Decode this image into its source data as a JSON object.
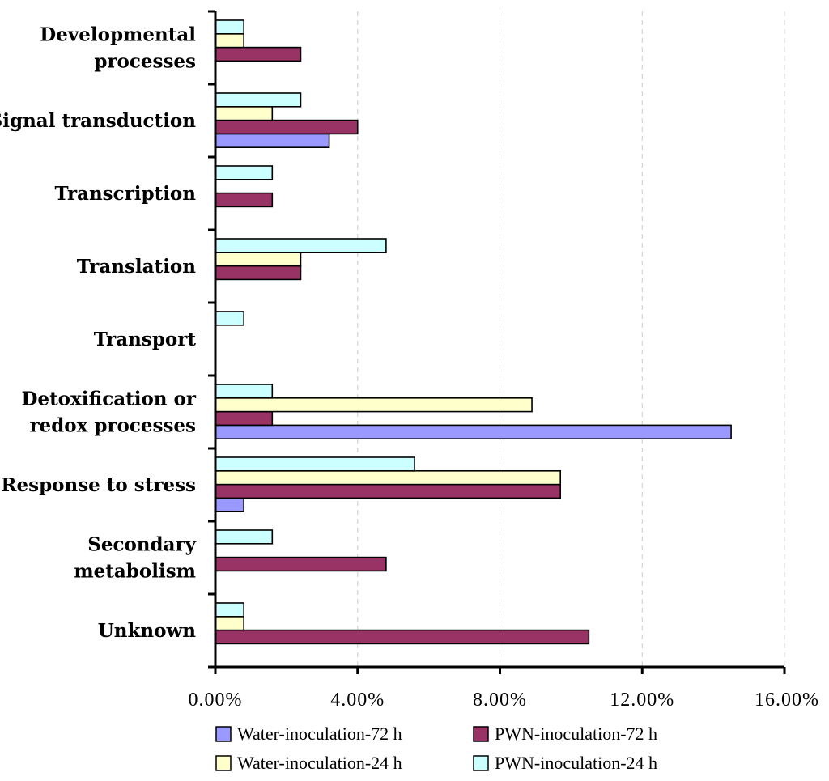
{
  "chart_data": {
    "type": "bar",
    "orientation": "horizontal",
    "categories": [
      [
        "Developmental",
        "processes"
      ],
      [
        "Signal transduction"
      ],
      [
        "Transcription"
      ],
      [
        "Translation"
      ],
      [
        "Transport"
      ],
      [
        "Detoxification or",
        "redox processes"
      ],
      [
        "Response to stress"
      ],
      [
        "Secondary",
        "metabolism"
      ],
      [
        "Unknown"
      ]
    ],
    "series": [
      {
        "name": "Water-inoculation-72 h",
        "color": "#9999ff",
        "values": [
          0,
          3.2,
          0,
          0,
          0,
          14.5,
          0.8,
          0,
          0
        ]
      },
      {
        "name": "PWN-inoculation-72 h",
        "color": "#993366",
        "values": [
          2.4,
          4.0,
          1.6,
          2.4,
          0,
          1.6,
          9.7,
          4.8,
          10.5
        ]
      },
      {
        "name": "Water-inoculation-24 h",
        "color": "#ffffcc",
        "values": [
          0.8,
          1.6,
          0,
          2.4,
          0,
          8.9,
          9.7,
          0,
          0.8
        ]
      },
      {
        "name": "PWN-inoculation-24 h",
        "color": "#ccffff",
        "values": [
          0.8,
          2.4,
          1.6,
          4.8,
          0.8,
          1.6,
          5.6,
          1.6,
          0.8
        ]
      }
    ],
    "xlim": [
      0,
      16
    ],
    "x_ticks": [
      "0.00%",
      "4.00%",
      "8.00%",
      "12.00%",
      "16.00%"
    ],
    "x_tick_values": [
      0,
      4,
      8,
      12,
      16
    ],
    "xlabel": "",
    "ylabel": "",
    "grid": "vertical dashed",
    "legend_position": "bottom"
  }
}
